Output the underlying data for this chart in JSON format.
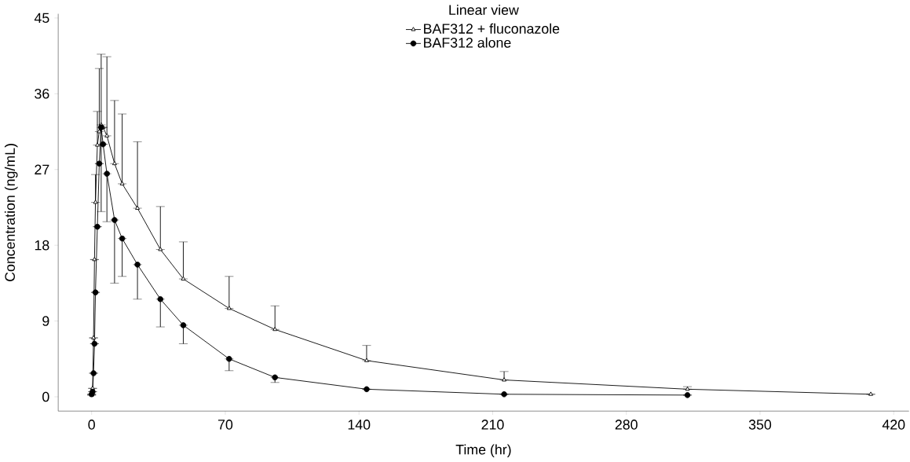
{
  "chart_data": {
    "type": "line",
    "xlabel": "Time (hr)",
    "ylabel": "Concentration (ng/mL)",
    "legend_title": "Linear view",
    "xlim": [
      -17.5,
      428
    ],
    "xticks": [
      0,
      70,
      140,
      210,
      280,
      350,
      420
    ],
    "ylim": [
      -1.7,
      45.5
    ],
    "yticks": [
      0,
      9,
      18,
      27,
      36,
      45
    ],
    "legend": "top",
    "grid": false,
    "line_style": "solid",
    "series": [
      {
        "name": "BAF312 + fluconazole",
        "color": "#000000",
        "marker": "triangle",
        "x": [
          0,
          0.5,
          1,
          1.5,
          2,
          3,
          4,
          5,
          6,
          8,
          12,
          16,
          24,
          36,
          48,
          72,
          96,
          144,
          216,
          312,
          408
        ],
        "values": [
          0.2,
          1.0,
          7.0,
          16.3,
          23.1,
          29.9,
          31.5,
          32.3,
          32.0,
          31.0,
          27.7,
          25.3,
          22.4,
          17.5,
          14.0,
          10.5,
          8.0,
          4.3,
          2.0,
          0.9,
          0.3
        ],
        "errors": [
          null,
          null,
          null,
          null,
          [
            23.1,
            26.4
          ],
          [
            29.9,
            33.9
          ],
          [
            31.5,
            39.0
          ],
          [
            32.3,
            40.7
          ],
          null,
          [
            31.0,
            40.4
          ],
          [
            27.7,
            35.2
          ],
          [
            25.3,
            33.6
          ],
          [
            22.4,
            30.3
          ],
          [
            17.5,
            22.6
          ],
          [
            14.0,
            18.4
          ],
          [
            10.5,
            14.3
          ],
          [
            8.0,
            10.8
          ],
          [
            4.3,
            6.1
          ],
          [
            2.0,
            3.0
          ],
          [
            0.9,
            1.2
          ],
          null
        ]
      },
      {
        "name": "BAF312 alone",
        "color": "#000000",
        "marker": "circle",
        "x": [
          0,
          0.5,
          1,
          1.5,
          2,
          3,
          4,
          5,
          6,
          8,
          12,
          16,
          24,
          36,
          48,
          72,
          96,
          144,
          216,
          312
        ],
        "values": [
          0.3,
          0.6,
          2.8,
          6.3,
          12.4,
          20.2,
          27.7,
          32.0,
          30.0,
          26.5,
          21.0,
          18.8,
          15.7,
          11.6,
          8.5,
          4.5,
          2.3,
          0.9,
          0.3,
          0.2
        ],
        "errors": [
          null,
          null,
          null,
          null,
          null,
          null,
          null,
          [
            22.0,
            32.0
          ],
          null,
          [
            20.8,
            26.5
          ],
          [
            13.5,
            21.0
          ],
          [
            14.3,
            18.8
          ],
          [
            11.6,
            15.7
          ],
          [
            8.3,
            11.6
          ],
          [
            6.3,
            8.5
          ],
          [
            3.1,
            4.5
          ],
          [
            1.7,
            2.3
          ],
          null,
          null,
          null
        ]
      }
    ]
  }
}
